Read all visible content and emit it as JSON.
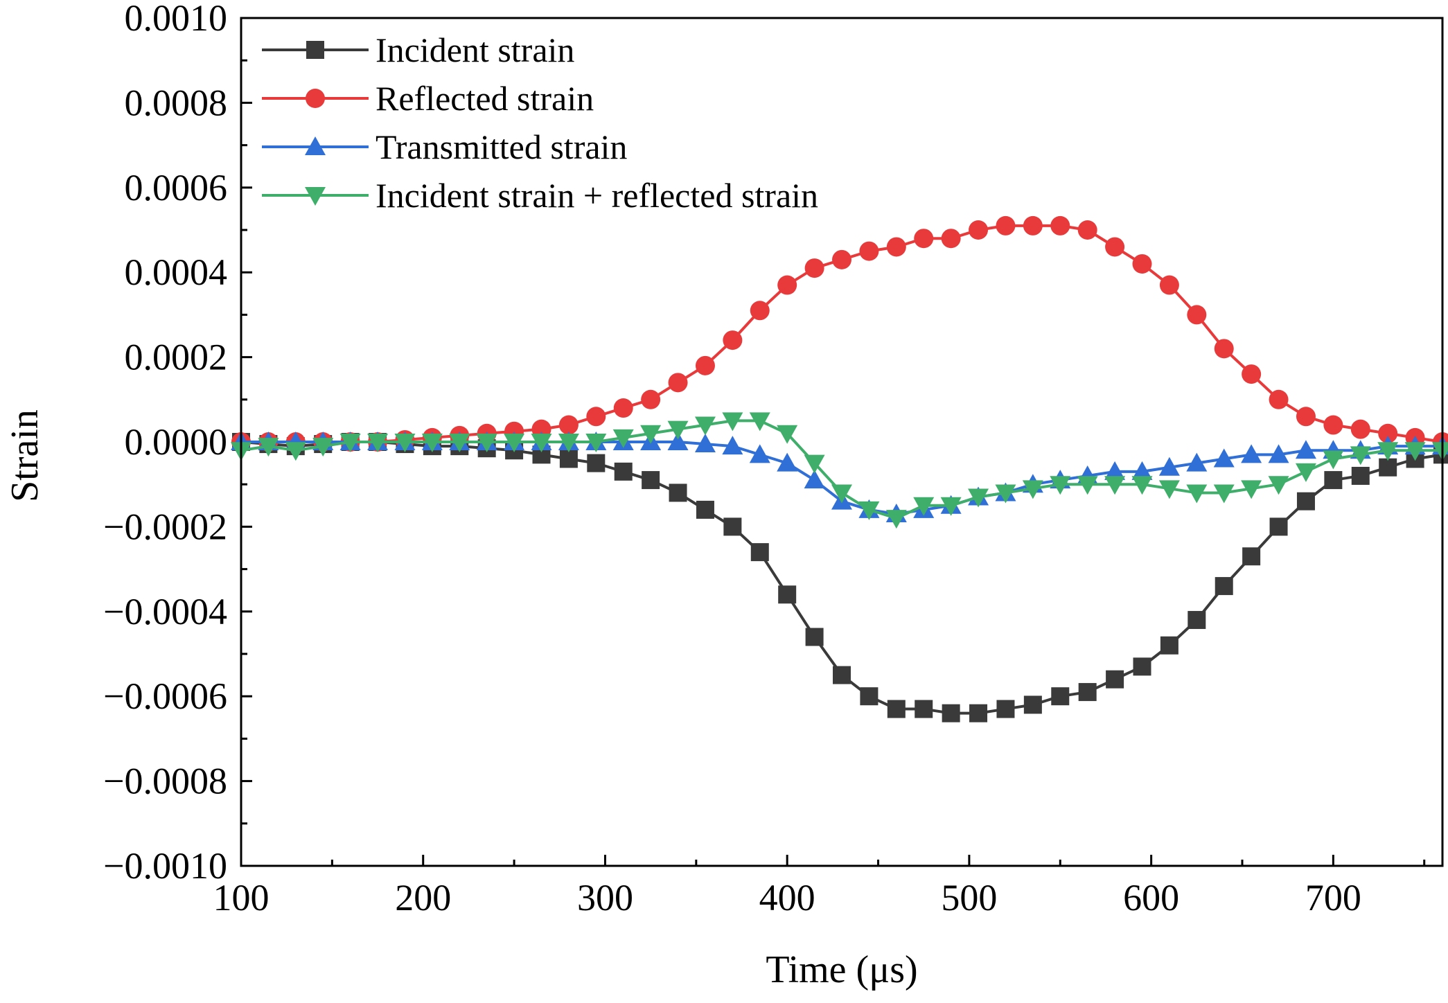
{
  "chart_data": {
    "type": "line",
    "xlabel": "Time (μs)",
    "ylabel": "Strain",
    "xlim": [
      100,
      760
    ],
    "ylim": [
      -0.001,
      0.001
    ],
    "grid": false,
    "legend_position": "top-left",
    "x_ticks": [
      {
        "value": 100,
        "label": "100"
      },
      {
        "value": 200,
        "label": "200"
      },
      {
        "value": 300,
        "label": "300"
      },
      {
        "value": 400,
        "label": "400"
      },
      {
        "value": 500,
        "label": "500"
      },
      {
        "value": 600,
        "label": "600"
      },
      {
        "value": 700,
        "label": "700"
      }
    ],
    "y_ticks": [
      {
        "value": 0.001,
        "label": "0.0010"
      },
      {
        "value": 0.0008,
        "label": "0.0008"
      },
      {
        "value": 0.0006,
        "label": "0.0006"
      },
      {
        "value": 0.0004,
        "label": "0.0004"
      },
      {
        "value": 0.0002,
        "label": "0.0002"
      },
      {
        "value": 0.0,
        "label": "0.0000"
      },
      {
        "value": -0.0002,
        "label": "−0.0002"
      },
      {
        "value": -0.0004,
        "label": "−0.0004"
      },
      {
        "value": -0.0006,
        "label": "−0.0006"
      },
      {
        "value": -0.0008,
        "label": "−0.0008"
      },
      {
        "value": -0.001,
        "label": "−0.0010"
      }
    ],
    "x": [
      100,
      115,
      130,
      145,
      160,
      175,
      190,
      205,
      220,
      235,
      250,
      265,
      280,
      295,
      310,
      325,
      340,
      355,
      370,
      385,
      400,
      415,
      430,
      445,
      460,
      475,
      490,
      505,
      520,
      535,
      550,
      565,
      580,
      595,
      610,
      625,
      640,
      655,
      670,
      685,
      700,
      715,
      730,
      745,
      760
    ],
    "series": [
      {
        "name": "Incident strain",
        "color": "#3a3a3a",
        "marker": "square",
        "values": [
          0.0,
          -5e-06,
          -1e-05,
          -5e-06,
          0.0,
          0.0,
          -5e-06,
          -1e-05,
          -1e-05,
          -1.5e-05,
          -2e-05,
          -3e-05,
          -4e-05,
          -5e-05,
          -7e-05,
          -9e-05,
          -0.00012,
          -0.00016,
          -0.0002,
          -0.00026,
          -0.00036,
          -0.00046,
          -0.00055,
          -0.0006,
          -0.00063,
          -0.00063,
          -0.00064,
          -0.00064,
          -0.00063,
          -0.00062,
          -0.0006,
          -0.00059,
          -0.00056,
          -0.00053,
          -0.00048,
          -0.00042,
          -0.00034,
          -0.00027,
          -0.0002,
          -0.00014,
          -9e-05,
          -8e-05,
          -6e-05,
          -4e-05,
          -3e-05
        ]
      },
      {
        "name": "Reflected strain",
        "color": "#e83a3a",
        "marker": "circle",
        "values": [
          0.0,
          0.0,
          0.0,
          0.0,
          0.0,
          0.0,
          5e-06,
          1e-05,
          1.5e-05,
          2e-05,
          2.5e-05,
          3e-05,
          4e-05,
          6e-05,
          8e-05,
          0.0001,
          0.00014,
          0.00018,
          0.00024,
          0.00031,
          0.00037,
          0.00041,
          0.00043,
          0.00045,
          0.00046,
          0.00048,
          0.00048,
          0.0005,
          0.00051,
          0.00051,
          0.00051,
          0.0005,
          0.00046,
          0.00042,
          0.00037,
          0.0003,
          0.00022,
          0.00016,
          0.0001,
          6e-05,
          4e-05,
          3e-05,
          2e-05,
          1e-05,
          0.0
        ]
      },
      {
        "name": "Transmitted strain",
        "color": "#2f6fd6",
        "marker": "triangle-up",
        "values": [
          0.0,
          0.0,
          0.0,
          0.0,
          0.0,
          0.0,
          0.0,
          0.0,
          0.0,
          0.0,
          0.0,
          0.0,
          0.0,
          0.0,
          0.0,
          0.0,
          0.0,
          -5e-06,
          -1e-05,
          -3e-05,
          -5e-05,
          -9e-05,
          -0.00014,
          -0.00016,
          -0.00017,
          -0.00016,
          -0.00015,
          -0.00013,
          -0.00012,
          -0.0001,
          -9e-05,
          -8e-05,
          -7e-05,
          -7e-05,
          -6e-05,
          -5e-05,
          -4e-05,
          -3e-05,
          -3e-05,
          -2e-05,
          -2e-05,
          -2e-05,
          -1e-05,
          -1e-05,
          -1e-05
        ]
      },
      {
        "name": "Incident strain + reflected strain",
        "color": "#3fae6a",
        "marker": "triangle-down",
        "values": [
          -2e-05,
          -1e-05,
          -2e-05,
          -1e-05,
          0.0,
          0.0,
          0.0,
          0.0,
          0.0,
          0.0,
          0.0,
          0.0,
          0.0,
          0.0,
          1e-05,
          2e-05,
          3e-05,
          4e-05,
          5e-05,
          5e-05,
          2e-05,
          -5e-05,
          -0.00012,
          -0.00016,
          -0.00018,
          -0.00015,
          -0.00015,
          -0.00013,
          -0.00012,
          -0.00011,
          -0.0001,
          -0.0001,
          -0.0001,
          -0.0001,
          -0.00011,
          -0.00012,
          -0.00012,
          -0.00011,
          -0.0001,
          -7e-05,
          -4e-05,
          -3e-05,
          -2e-05,
          -2e-05,
          -2e-05
        ]
      }
    ]
  }
}
